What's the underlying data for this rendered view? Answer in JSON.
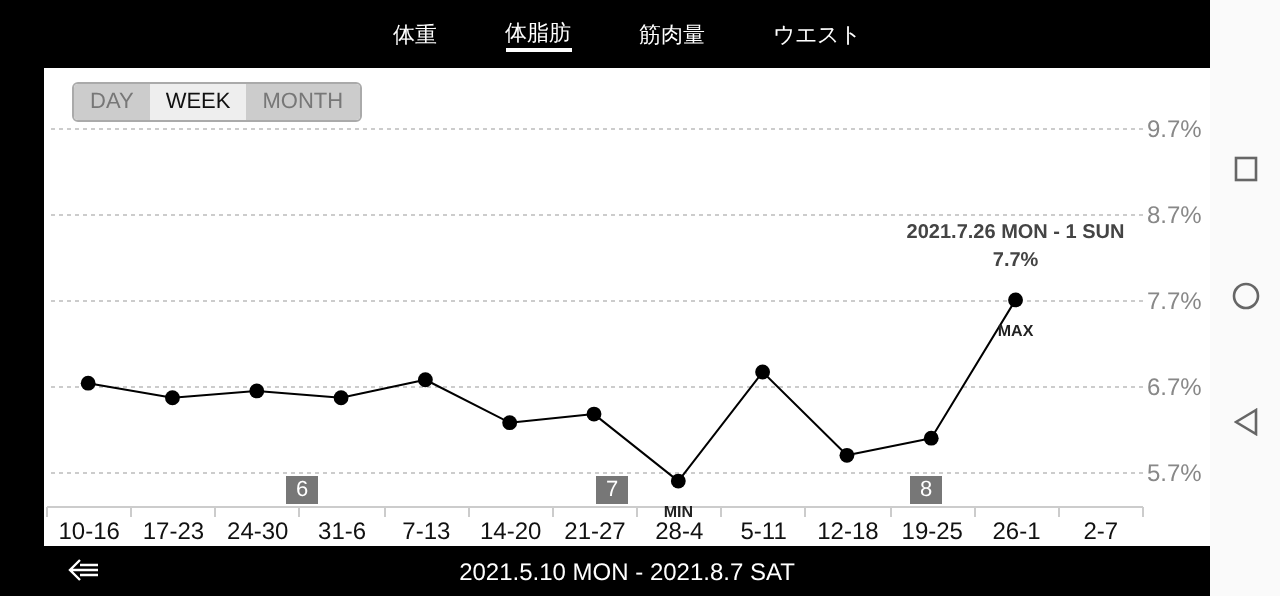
{
  "chart_data": {
    "type": "line",
    "categories": [
      "10-16",
      "17-23",
      "24-30",
      "31-6",
      "7-13",
      "14-20",
      "21-27",
      "28-4",
      "5-11",
      "12-18",
      "19-25",
      "26-1",
      "2-7"
    ],
    "series": [
      {
        "color": "#000000",
        "values": [
          6.73,
          6.56,
          6.64,
          6.56,
          6.77,
          6.27,
          6.37,
          5.59,
          6.86,
          5.89,
          6.09,
          7.7,
          null
        ]
      }
    ],
    "ylim": [
      5.3,
      10.4
    ],
    "yticks": [
      {
        "value": 5.7,
        "label": "5.7%"
      },
      {
        "value": 6.7,
        "label": "6.7%"
      },
      {
        "value": 7.7,
        "label": "7.7%"
      },
      {
        "value": 8.7,
        "label": "8.7%"
      },
      {
        "value": 9.7,
        "label": "9.7%"
      }
    ],
    "grid": "y",
    "marker": "circle",
    "line_style": "solid",
    "annotations": [
      "体重",
      "体脂肪",
      "筋肉量",
      "ウエスト",
      "DAY",
      "WEEK",
      "MONTH",
      "2021.5.10 MON - 2021.8.7 SAT",
      {
        "text": "MAX",
        "x": "26-1",
        "y": 7.7
      },
      {
        "text": "7.7%",
        "x": "26-1",
        "y": 7.7
      },
      {
        "text": "2021.7.26 MON - 1 SUN",
        "x": "26-1",
        "y": 7.7
      },
      {
        "text": "MIN",
        "x": "28-4",
        "y": 5.59
      },
      "6",
      "7",
      "8"
    ]
  }
}
